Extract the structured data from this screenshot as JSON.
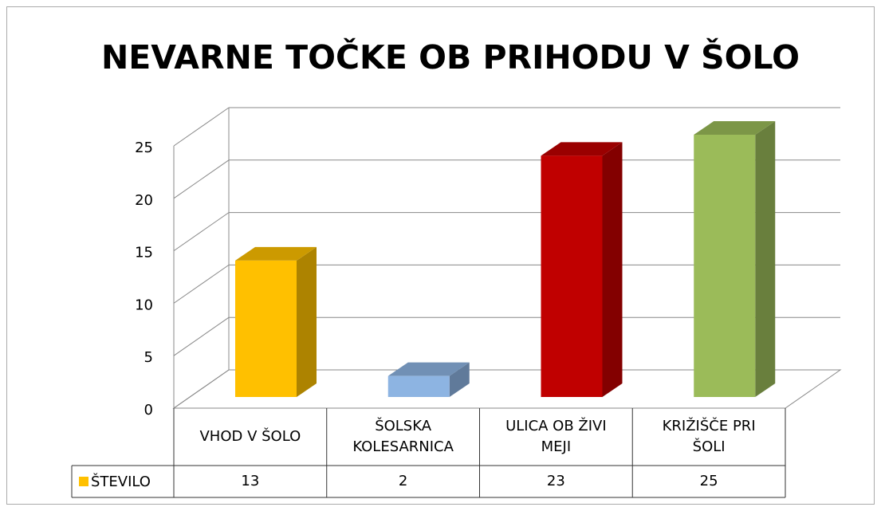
{
  "chart_data": {
    "type": "bar3d",
    "title": "NEVARNE TOČKE OB PRIHODU V ŠOLO",
    "categories": [
      "VHOD V ŠOLO",
      "ŠOLSKA KOLESARNICA",
      "ULICA OB ŽIVI MEJI",
      "KRIŽIŠČE PRI ŠOLI"
    ],
    "series": [
      {
        "name": "ŠTEVILO",
        "color": "#ffc000",
        "point_colors": [
          "#ffc000",
          "#8db4e2",
          "#c00000",
          "#9bbb59"
        ],
        "values": [
          13,
          2,
          23,
          25
        ]
      }
    ],
    "ylim": [
      0,
      25
    ],
    "yticks": [
      0,
      5,
      10,
      15,
      20,
      25
    ],
    "grid": true,
    "data_table": true
  }
}
